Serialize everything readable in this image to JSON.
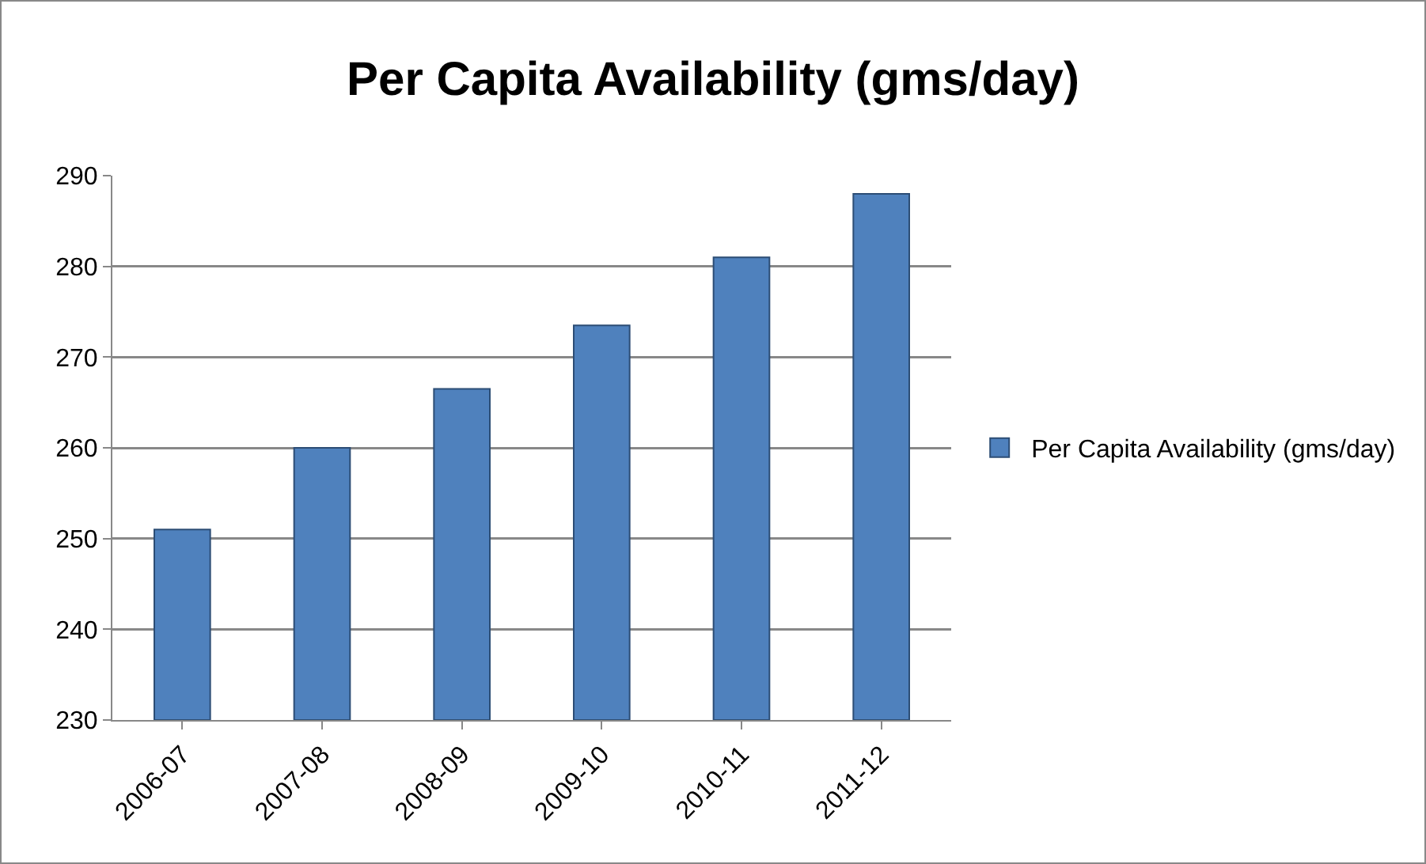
{
  "chart_data": {
    "type": "bar",
    "title": "Per Capita Availability (gms/day)",
    "categories": [
      "2006-07",
      "2007-08",
      "2008-09",
      "2009-10",
      "2010-11",
      "2011-12"
    ],
    "series": [
      {
        "name": "Per Capita Availability (gms/day)",
        "color": "#4f81bd",
        "values": [
          251,
          260,
          266.5,
          273.5,
          281,
          288
        ]
      }
    ],
    "ylim": [
      230,
      290
    ],
    "yticks": [
      230,
      240,
      250,
      260,
      270,
      280,
      290
    ],
    "grid": "y",
    "legend": "right"
  }
}
